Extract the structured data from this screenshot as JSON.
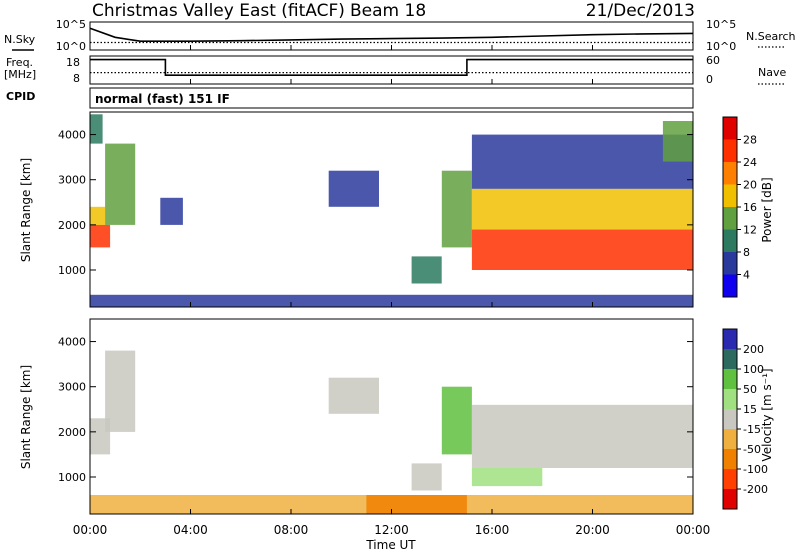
{
  "header": {
    "title": "Christmas Valley East (fitACF)",
    "beam": "Beam 18",
    "date": "21/Dec/2013"
  },
  "left_labels": {
    "nsky": "N.Sky",
    "freq": "Freq.",
    "freq_unit": "[MHz]",
    "cpid": "CPID"
  },
  "right_labels": {
    "nsearch": "N.Search",
    "nave": "Nave"
  },
  "noise_panel": {
    "left_ticks": [
      "10^5",
      "10^0"
    ],
    "right_ticks": [
      "10^5",
      "10^0"
    ]
  },
  "freq_panel": {
    "left_ticks": [
      "18",
      "8"
    ],
    "right_ticks": [
      "60",
      "0"
    ]
  },
  "cpid_text": "normal (fast) 151 IF",
  "power_panel": {
    "ylabel": "Slant Range [km]",
    "cbar_label": "Power [dB]",
    "cbar_ticks": [
      "28",
      "24",
      "20",
      "16",
      "12",
      "8",
      "4"
    ],
    "cbar_colors": [
      "#e00000",
      "#ff3000",
      "#ff8000",
      "#f0c000",
      "#60a040",
      "#2c7a60",
      "#2a3a9c",
      "#1000f0"
    ]
  },
  "velocity_panel": {
    "ylabel": "Slant Range [km]",
    "cbar_label": "Velocity [m s⁻¹]",
    "cbar_ticks": [
      "200",
      "100",
      "50",
      "15",
      "-15",
      "-50",
      "-100",
      "-200"
    ],
    "cbar_colors": [
      "#2a2ab0",
      "#2c6a60",
      "#60c040",
      "#a0e080",
      "#c8c8c0",
      "#f0b040",
      "#f08000",
      "#ff4000",
      "#e00000"
    ]
  },
  "x_axis": {
    "label": "Time UT",
    "ticks": [
      "00:00",
      "04:00",
      "08:00",
      "12:00",
      "16:00",
      "20:00",
      "00:00"
    ]
  },
  "chart_data": [
    {
      "type": "line",
      "name": "noise",
      "x_range_hours": [
        0,
        24
      ],
      "y_ticks": [
        "10^5",
        "10^0"
      ],
      "series": [
        {
          "label": "N.Sky",
          "style": "solid",
          "x": [
            0,
            1,
            2,
            4,
            6,
            8,
            10,
            12,
            14,
            16,
            18,
            20,
            22,
            24
          ],
          "y": [
            0.8,
            0.45,
            0.3,
            0.3,
            0.32,
            0.35,
            0.38,
            0.4,
            0.42,
            0.45,
            0.5,
            0.55,
            0.58,
            0.6
          ]
        },
        {
          "label": "N.Search",
          "style": "dotted",
          "x": [
            0,
            24
          ],
          "y": [
            0.25,
            0.25
          ]
        }
      ]
    },
    {
      "type": "line",
      "name": "frequency",
      "x_range_hours": [
        0,
        24
      ],
      "y_range": [
        8,
        18
      ],
      "series": [
        {
          "label": "Freq.",
          "style": "solid",
          "x": [
            0,
            3,
            3,
            15,
            15,
            24
          ],
          "y": [
            17,
            17,
            11,
            11,
            17,
            17
          ]
        },
        {
          "label": "Nave",
          "style": "dotted",
          "x": [
            0,
            24
          ],
          "y": [
            12,
            12
          ]
        }
      ]
    },
    {
      "type": "heatmap",
      "name": "power",
      "x_range_hours": [
        0,
        24
      ],
      "y_range_km": [
        180,
        4500
      ],
      "y_ticks": [
        1000,
        2000,
        3000,
        4000
      ],
      "regions": [
        {
          "x": [
            0,
            0.8
          ],
          "y": [
            1500,
            2000
          ],
          "level": 6
        },
        {
          "x": [
            0,
            0.6
          ],
          "y": [
            2000,
            2400
          ],
          "level": 4
        },
        {
          "x": [
            0.6,
            1.8
          ],
          "y": [
            2000,
            3800
          ],
          "level": 3
        },
        {
          "x": [
            0,
            0.5
          ],
          "y": [
            3800,
            4450
          ],
          "level": 2
        },
        {
          "x": [
            2.8,
            3.7
          ],
          "y": [
            2000,
            2600
          ],
          "level": 1
        },
        {
          "x": [
            9.5,
            11.5
          ],
          "y": [
            2400,
            3200
          ],
          "level": 1
        },
        {
          "x": [
            12.8,
            14.0
          ],
          "y": [
            700,
            1300
          ],
          "level": 2
        },
        {
          "x": [
            14.0,
            15.2
          ],
          "y": [
            1500,
            3200
          ],
          "level": 3
        },
        {
          "x": [
            15.2,
            24.0
          ],
          "y": [
            1000,
            1900
          ],
          "level": 6
        },
        {
          "x": [
            15.2,
            24.0
          ],
          "y": [
            1900,
            2800
          ],
          "level": 4
        },
        {
          "x": [
            15.2,
            24.0
          ],
          "y": [
            2800,
            4000
          ],
          "level": 1
        },
        {
          "x": [
            22.8,
            24.0
          ],
          "y": [
            3400,
            4300
          ],
          "level": 3
        },
        {
          "x": [
            0,
            24
          ],
          "y": [
            180,
            450
          ],
          "level": 1
        }
      ]
    },
    {
      "type": "heatmap",
      "name": "velocity",
      "x_range_hours": [
        0,
        24
      ],
      "y_range_km": [
        180,
        4500
      ],
      "y_ticks": [
        1000,
        2000,
        3000,
        4000
      ],
      "regions": [
        {
          "x": [
            0,
            0.8
          ],
          "y": [
            1500,
            2300
          ],
          "level": 4
        },
        {
          "x": [
            0.6,
            1.8
          ],
          "y": [
            2000,
            3800
          ],
          "level": 4
        },
        {
          "x": [
            9.5,
            11.5
          ],
          "y": [
            2400,
            3200
          ],
          "level": 4
        },
        {
          "x": [
            12.8,
            14.0
          ],
          "y": [
            700,
            1300
          ],
          "level": 4
        },
        {
          "x": [
            14.0,
            15.2
          ],
          "y": [
            1500,
            3000
          ],
          "level": 2
        },
        {
          "x": [
            15.2,
            24.0
          ],
          "y": [
            1200,
            2600
          ],
          "level": 4
        },
        {
          "x": [
            15.2,
            18.0
          ],
          "y": [
            800,
            1200
          ],
          "level": 3
        },
        {
          "x": [
            0,
            24
          ],
          "y": [
            180,
            600
          ],
          "level": 5
        },
        {
          "x": [
            11.0,
            15.0
          ],
          "y": [
            180,
            600
          ],
          "level": 6
        }
      ]
    }
  ]
}
